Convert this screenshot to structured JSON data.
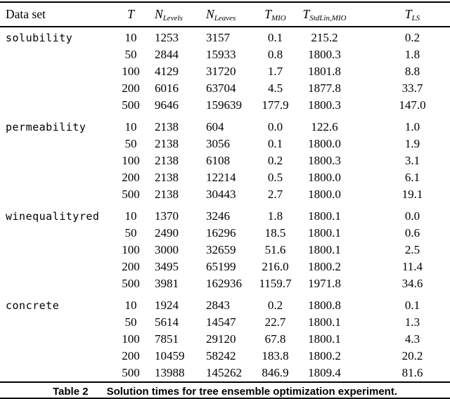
{
  "table": {
    "headers": {
      "dataset": "Data set",
      "t": "T",
      "n_levels": {
        "base": "N",
        "sub": "Levels"
      },
      "n_leaves": {
        "base": "N",
        "sub": "Leaves"
      },
      "t_mio": {
        "base": "T",
        "sub": "MIO"
      },
      "t_stdlin_mio": {
        "base": "T",
        "sub": "StdLin,MIO"
      },
      "t_ls": {
        "base": "T",
        "sub": "LS"
      }
    },
    "groups": [
      {
        "name": "solubility",
        "rows": [
          [
            "10",
            "1253",
            "3157",
            "0.1",
            "215.2",
            "0.2"
          ],
          [
            "50",
            "2844",
            "15933",
            "0.8",
            "1800.3",
            "1.8"
          ],
          [
            "100",
            "4129",
            "31720",
            "1.7",
            "1801.8",
            "8.8"
          ],
          [
            "200",
            "6016",
            "63704",
            "4.5",
            "1877.8",
            "33.7"
          ],
          [
            "500",
            "9646",
            "159639",
            "177.9",
            "1800.3",
            "147.0"
          ]
        ]
      },
      {
        "name": "permeability",
        "rows": [
          [
            "10",
            "2138",
            "604",
            "0.0",
            "122.6",
            "1.0"
          ],
          [
            "50",
            "2138",
            "3056",
            "0.1",
            "1800.0",
            "1.9"
          ],
          [
            "100",
            "2138",
            "6108",
            "0.2",
            "1800.3",
            "3.1"
          ],
          [
            "200",
            "2138",
            "12214",
            "0.5",
            "1800.0",
            "6.1"
          ],
          [
            "500",
            "2138",
            "30443",
            "2.7",
            "1800.0",
            "19.1"
          ]
        ]
      },
      {
        "name": "winequalityred",
        "rows": [
          [
            "10",
            "1370",
            "3246",
            "1.8",
            "1800.1",
            "0.0"
          ],
          [
            "50",
            "2490",
            "16296",
            "18.5",
            "1800.1",
            "0.6"
          ],
          [
            "100",
            "3000",
            "32659",
            "51.6",
            "1800.1",
            "2.5"
          ],
          [
            "200",
            "3495",
            "65199",
            "216.0",
            "1800.2",
            "11.4"
          ],
          [
            "500",
            "3981",
            "162936",
            "1159.7",
            "1971.8",
            "34.6"
          ]
        ]
      },
      {
        "name": "concrete",
        "rows": [
          [
            "10",
            "1924",
            "2843",
            "0.2",
            "1800.8",
            "0.1"
          ],
          [
            "50",
            "5614",
            "14547",
            "22.7",
            "1800.1",
            "1.3"
          ],
          [
            "100",
            "7851",
            "29120",
            "67.8",
            "1800.1",
            "4.3"
          ],
          [
            "200",
            "10459",
            "58242",
            "183.8",
            "1800.2",
            "20.2"
          ],
          [
            "500",
            "13988",
            "145262",
            "846.9",
            "1809.4",
            "81.6"
          ]
        ]
      }
    ]
  },
  "caption": {
    "label": "Table 2",
    "text": "Solution times for tree ensemble optimization experiment."
  },
  "colors": {
    "text": "#000000",
    "background": "#ffffff",
    "rule": "#000000"
  }
}
